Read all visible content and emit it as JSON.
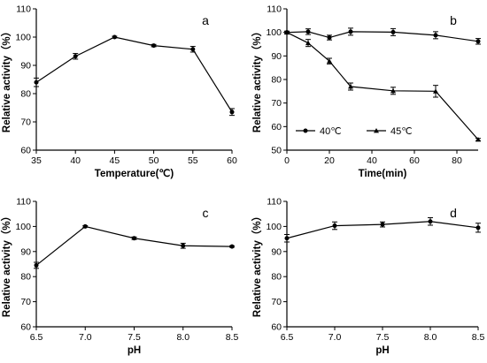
{
  "chart_data": [
    {
      "panel": "a",
      "type": "line",
      "xlabel": "Temperature(℃)",
      "ylabel": "Relative activity（%）",
      "xlim": [
        35,
        60
      ],
      "ylim": [
        60,
        110
      ],
      "xticks": [
        "35",
        "40",
        "45",
        "50",
        "55",
        "60"
      ],
      "yticks": [
        "60",
        "70",
        "80",
        "90",
        "100",
        "110"
      ],
      "grid": false,
      "series": [
        {
          "x": [
            35,
            40,
            45,
            50,
            55,
            60
          ],
          "values": [
            84,
            93.2,
            100,
            97,
            95.7,
            73.5
          ],
          "errors": [
            1.5,
            1.0,
            0.3,
            0.4,
            1.0,
            1.2
          ]
        }
      ]
    },
    {
      "panel": "b",
      "type": "line",
      "xlabel": "Time(min)",
      "ylabel": "Relative activity（%）",
      "xlim": [
        0,
        90
      ],
      "ylim": [
        50,
        110
      ],
      "xticks": [
        "0",
        "20",
        "40",
        "60",
        "80"
      ],
      "yticks": [
        "50",
        "60",
        "70",
        "80",
        "90",
        "100",
        "110"
      ],
      "grid": false,
      "legend_position": "bottom-left",
      "series": [
        {
          "name": "40℃",
          "marker": "circle",
          "x": [
            0,
            10,
            20,
            30,
            50,
            70,
            90
          ],
          "values": [
            100,
            100.3,
            97.8,
            100.3,
            100.1,
            98.8,
            96.2
          ],
          "errors": [
            0.5,
            1.2,
            1.0,
            1.5,
            1.5,
            1.5,
            1.2
          ]
        },
        {
          "name": "45℃",
          "marker": "triangle",
          "x": [
            0,
            10,
            20,
            30,
            50,
            70,
            90
          ],
          "values": [
            100,
            95.5,
            87.8,
            77,
            75.2,
            75,
            54.5
          ],
          "errors": [
            0.5,
            1.5,
            1.2,
            1.5,
            1.5,
            2.5,
            0.5
          ]
        }
      ]
    },
    {
      "panel": "c",
      "type": "line",
      "xlabel": "pH",
      "ylabel": "Relative activity（%）",
      "xlim": [
        6.5,
        8.5
      ],
      "ylim": [
        60,
        110
      ],
      "xticks": [
        "6.5",
        "7.0",
        "7.5",
        "8.0",
        "8.5"
      ],
      "yticks": [
        "60",
        "70",
        "80",
        "90",
        "100",
        "110"
      ],
      "grid": false,
      "series": [
        {
          "x": [
            6.5,
            7.0,
            7.5,
            8.0,
            8.5
          ],
          "values": [
            84.5,
            100,
            95.3,
            92.3,
            92
          ],
          "errors": [
            1.2,
            0.3,
            0.5,
            1.0,
            0.3
          ]
        }
      ]
    },
    {
      "panel": "d",
      "type": "line",
      "xlabel": "pH",
      "ylabel": "Relative activity（%）",
      "xlim": [
        6.5,
        8.5
      ],
      "ylim": [
        60,
        110
      ],
      "xticks": [
        "6.5",
        "7.0",
        "7.5",
        "8.0",
        "8.5"
      ],
      "yticks": [
        "60",
        "70",
        "80",
        "90",
        "100",
        "110"
      ],
      "grid": false,
      "series": [
        {
          "x": [
            6.5,
            7.0,
            7.5,
            8.0,
            8.5
          ],
          "values": [
            95.3,
            100.3,
            100.8,
            102,
            99.5
          ],
          "errors": [
            1.5,
            1.5,
            1.0,
            1.5,
            1.8
          ]
        }
      ]
    }
  ]
}
